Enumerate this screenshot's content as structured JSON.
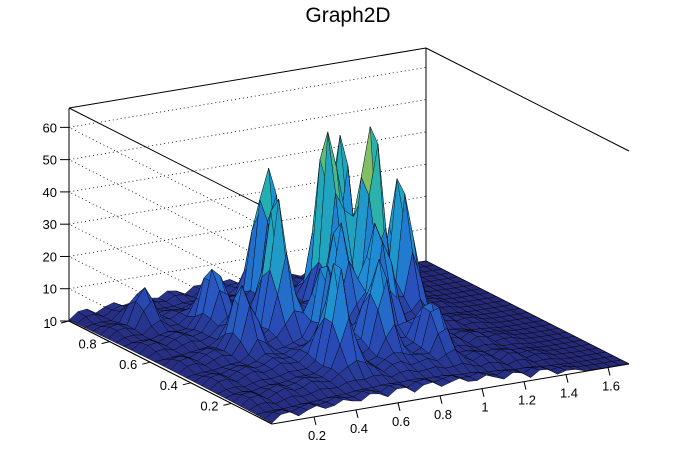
{
  "chart_data": {
    "type": "surface",
    "title": "Graph2D",
    "xlabel": "",
    "ylabel": "",
    "zlabel": "",
    "xlim": [
      0,
      1.7
    ],
    "ylim": [
      0,
      1
    ],
    "zlim": [
      0,
      66
    ],
    "x_ticks": [
      "0.2",
      "0.4",
      "0.6",
      "0.8",
      "1",
      "1.2",
      "1.4",
      "1.6"
    ],
    "y_ticks": [
      "0.2",
      "0.4",
      "0.6",
      "0.8",
      "1"
    ],
    "z_ticks": [
      "0",
      "10",
      "20",
      "30",
      "40",
      "50",
      "60"
    ],
    "colormap": "viridis",
    "grid": true,
    "peaks": [
      {
        "x": 0.55,
        "y": 0.55,
        "z": 42
      },
      {
        "x": 0.75,
        "y": 0.8,
        "z": 44
      },
      {
        "x": 0.85,
        "y": 0.55,
        "z": 30
      },
      {
        "x": 0.55,
        "y": 0.25,
        "z": 33
      },
      {
        "x": 0.95,
        "y": 0.7,
        "z": 60
      },
      {
        "x": 1.05,
        "y": 0.6,
        "z": 64
      },
      {
        "x": 0.95,
        "y": 0.45,
        "z": 36
      },
      {
        "x": 1.1,
        "y": 0.8,
        "z": 50
      },
      {
        "x": 1.2,
        "y": 0.6,
        "z": 44
      },
      {
        "x": 0.8,
        "y": 0.3,
        "z": 28
      },
      {
        "x": 0.35,
        "y": 0.5,
        "z": 18
      },
      {
        "x": 0.4,
        "y": 0.7,
        "z": 20
      },
      {
        "x": 0.65,
        "y": 0.4,
        "z": 26
      },
      {
        "x": 1.0,
        "y": 0.25,
        "z": 18
      },
      {
        "x": 0.2,
        "y": 0.85,
        "z": 10
      }
    ]
  }
}
